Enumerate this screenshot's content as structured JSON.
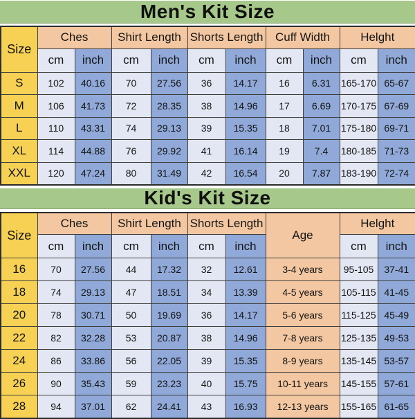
{
  "colors": {
    "banner_green": "#a6c88a",
    "size_yellow": "#f6d153",
    "header_peach": "#f3c7a1",
    "cm_cell_light": "#e3e7f3",
    "inch_cell_blue": "#90a9d8",
    "border_dark": "#3d3d3d",
    "text": "#141414"
  },
  "chart_data": [
    {
      "type": "table",
      "title": "Men's Kit Size",
      "header": {
        "size": "Size",
        "groups": [
          "Ches",
          "Shirt Length",
          "Shorts Length",
          "Cuff Width",
          "Helght"
        ],
        "unit_cm": "cm",
        "unit_inch": "inch"
      },
      "rows": [
        [
          "S",
          "102",
          "40.16",
          "70",
          "27.56",
          "36",
          "14.17",
          "16",
          "6.31",
          "165-170",
          "65-67"
        ],
        [
          "M",
          "106",
          "41.73",
          "72",
          "28.35",
          "38",
          "14.96",
          "17",
          "6.69",
          "170-175",
          "67-69"
        ],
        [
          "L",
          "110",
          "43.31",
          "74",
          "29.13",
          "39",
          "15.35",
          "18",
          "7.01",
          "175-180",
          "69-71"
        ],
        [
          "XL",
          "114",
          "44.88",
          "76",
          "29.92",
          "41",
          "16.14",
          "19",
          "7.4",
          "180-185",
          "71-73"
        ],
        [
          "XXL",
          "120",
          "47.24",
          "80",
          "31.49",
          "42",
          "16.54",
          "20",
          "7.87",
          "183-190",
          "72-74"
        ]
      ]
    },
    {
      "type": "table",
      "title": "Kid's Kit Size",
      "header": {
        "size": "Size",
        "groups": [
          "Ches",
          "Shirt Length",
          "Shorts Length"
        ],
        "age": "Age",
        "height": "Helght",
        "unit_cm": "cm",
        "unit_inch": "inch"
      },
      "rows": [
        [
          "16",
          "70",
          "27.56",
          "44",
          "17.32",
          "32",
          "12.61",
          "3-4 years",
          "95-105",
          "37-41"
        ],
        [
          "18",
          "74",
          "29.13",
          "47",
          "18.51",
          "34",
          "13.39",
          "4-5 years",
          "105-115",
          "41-45"
        ],
        [
          "20",
          "78",
          "30.71",
          "50",
          "19.69",
          "36",
          "14.17",
          "5-6 years",
          "115-125",
          "45-49"
        ],
        [
          "22",
          "82",
          "32.28",
          "53",
          "20.87",
          "38",
          "14.96",
          "7-8 years",
          "125-135",
          "49-53"
        ],
        [
          "24",
          "86",
          "33.86",
          "56",
          "22.05",
          "39",
          "15.35",
          "8-9 years",
          "135-145",
          "53-57"
        ],
        [
          "26",
          "90",
          "35.43",
          "59",
          "23.23",
          "40",
          "15.75",
          "10-11 years",
          "145-155",
          "57-61"
        ],
        [
          "28",
          "94",
          "37.01",
          "62",
          "24.41",
          "43",
          "16.93",
          "12-13 years",
          "155-165",
          "61-65"
        ]
      ]
    }
  ]
}
